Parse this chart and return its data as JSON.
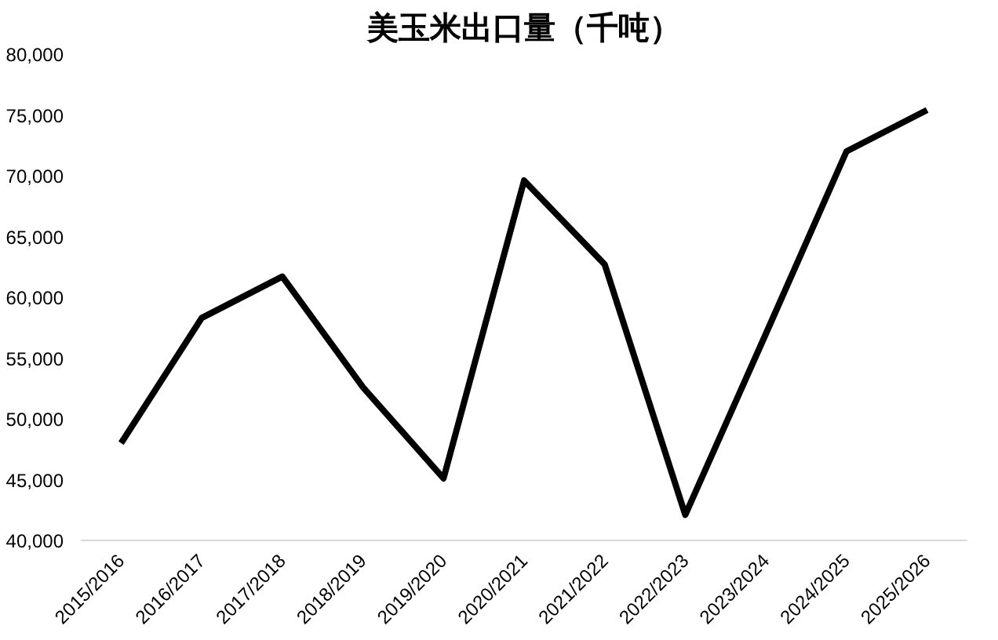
{
  "chart_data": {
    "type": "line",
    "title": "美玉米出口量（千吨）",
    "categories": [
      "2015/2016",
      "2016/2017",
      "2017/2018",
      "2018/2019",
      "2019/2020",
      "2020/2021",
      "2021/2022",
      "2022/2023",
      "2023/2024",
      "2024/2025",
      "2025/2026"
    ],
    "series": [
      {
        "color": "#000000",
        "values": [
          48000,
          58300,
          61700,
          52600,
          45100,
          69600,
          62700,
          42100,
          57000,
          72000,
          75400
        ]
      }
    ],
    "ylim": [
      40000,
      80000
    ],
    "yticks": [
      {
        "value": 40000,
        "label": "40,000"
      },
      {
        "value": 45000,
        "label": "45,000"
      },
      {
        "value": 50000,
        "label": "50,000"
      },
      {
        "value": 55000,
        "label": "55,000"
      },
      {
        "value": 60000,
        "label": "60,000"
      },
      {
        "value": 65000,
        "label": "65,000"
      },
      {
        "value": 70000,
        "label": "70,000"
      },
      {
        "value": 75000,
        "label": "75,000"
      },
      {
        "value": 80000,
        "label": "80,000"
      }
    ],
    "grid": false,
    "marker": "none",
    "line_style": "solid"
  }
}
